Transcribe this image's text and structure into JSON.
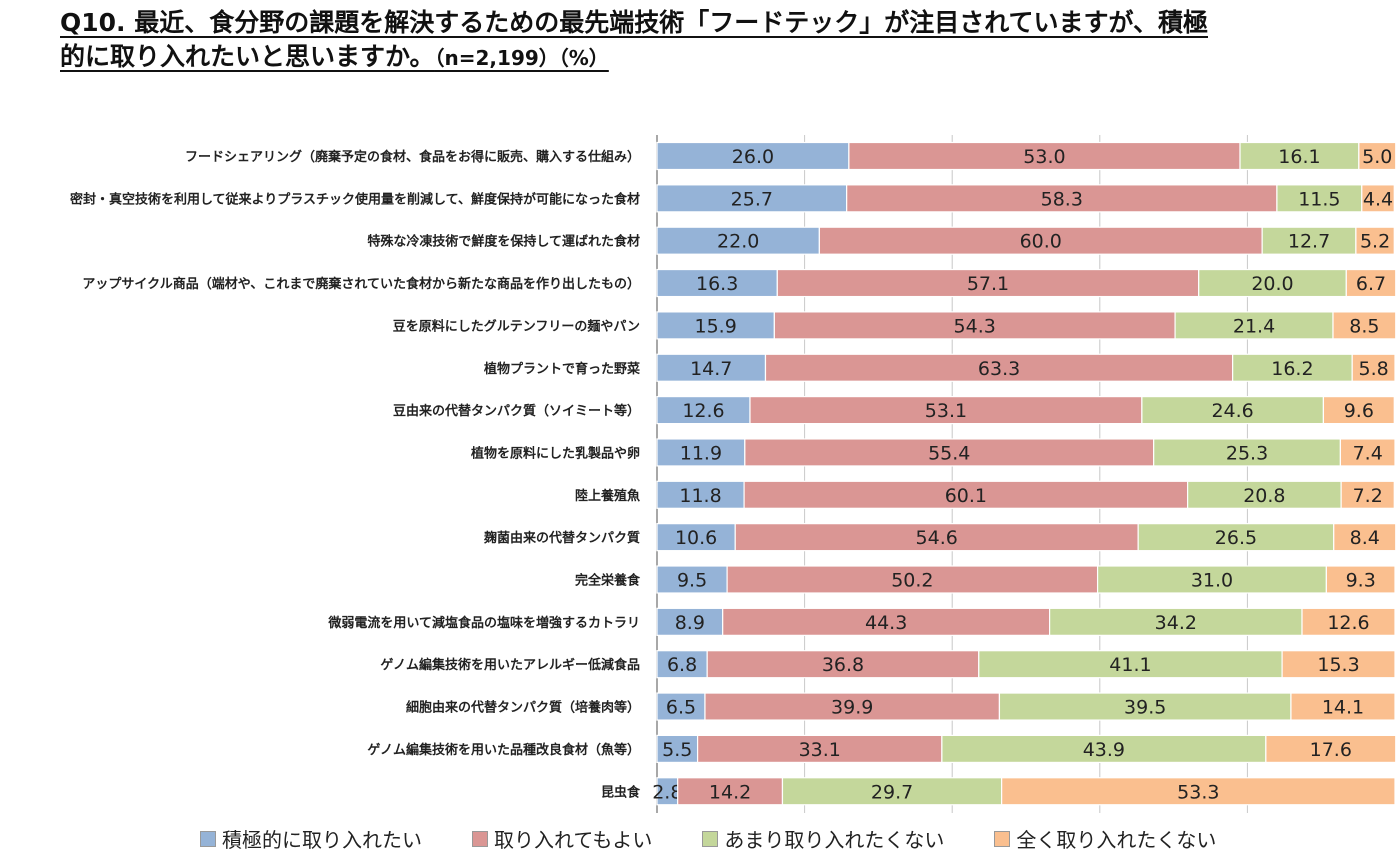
{
  "title": {
    "line1": "Q10. 最近、食分野の課題を解決するための最先端技術「フードテック」が注目されていますが、積極",
    "line2": "的に取り入れたいと思いますか。",
    "suffix": "（n=2,199）（%）"
  },
  "chart_data": {
    "type": "bar",
    "orientation": "horizontal",
    "stacked": "percent",
    "xlim": [
      0,
      100
    ],
    "grid": true,
    "legend_position": "bottom",
    "categories": [
      "フードシェアリング（廃棄予定の食材、食品をお得に販売、購入する仕組み）",
      "密封・真空技術を利用して従来よりプラスチック使用量を削減して、鮮度保持が可能になった食材",
      "特殊な冷凍技術で鮮度を保持して運ばれた食材",
      "アップサイクル商品（端材や、これまで廃棄されていた食材から新たな商品を作り出したもの）",
      "豆を原料にしたグルテンフリーの麺やパン",
      "植物プラントで育った野菜",
      "豆由来の代替タンパク質（ソイミート等）",
      "植物を原料にした乳製品や卵",
      "陸上養殖魚",
      "麹菌由来の代替タンパク質",
      "完全栄養食",
      "微弱電流を用いて減塩食品の塩味を増強するカトラリ",
      "ゲノム編集技術を用いたアレルギー低減食品",
      "細胞由来の代替タンパク質（培養肉等）",
      "ゲノム編集技術を用いた品種改良食材（魚等）",
      "昆虫食"
    ],
    "series": [
      {
        "name": "積極的に取り入れたい",
        "color": "#95b3d7",
        "values": [
          26.0,
          25.7,
          22.0,
          16.3,
          15.9,
          14.7,
          12.6,
          11.9,
          11.8,
          10.6,
          9.5,
          8.9,
          6.8,
          6.5,
          5.5,
          2.8
        ]
      },
      {
        "name": "取り入れてもよい",
        "color": "#da9694",
        "values": [
          53.0,
          58.3,
          60.0,
          57.1,
          54.3,
          63.3,
          53.1,
          55.4,
          60.1,
          54.6,
          50.2,
          44.3,
          36.8,
          39.9,
          33.1,
          14.2
        ]
      },
      {
        "name": "あまり取り入れたくない",
        "color": "#c4d79b",
        "values": [
          16.1,
          11.5,
          12.7,
          20.0,
          21.4,
          16.2,
          24.6,
          25.3,
          20.8,
          26.5,
          31.0,
          34.2,
          41.1,
          39.5,
          43.9,
          29.7
        ]
      },
      {
        "name": "全く取り入れたくない",
        "color": "#fabf8f",
        "values": [
          5.0,
          4.4,
          5.2,
          6.7,
          8.5,
          5.8,
          9.6,
          7.4,
          7.2,
          8.4,
          9.3,
          12.6,
          15.3,
          14.1,
          17.6,
          53.3
        ]
      }
    ]
  }
}
